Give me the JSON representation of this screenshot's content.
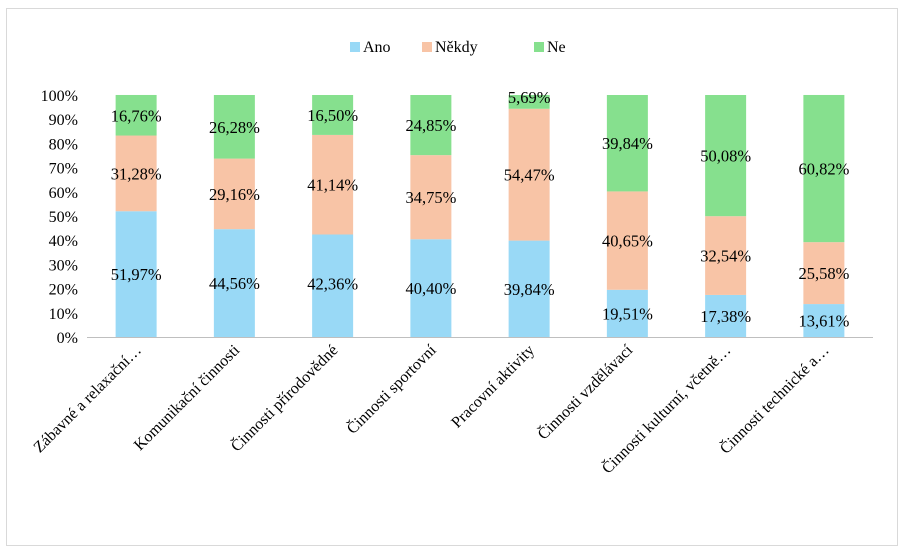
{
  "chart_data": {
    "type": "bar",
    "stacked": "percent",
    "title": "",
    "xlabel": "",
    "ylabel": "",
    "ylim": [
      0,
      100
    ],
    "y_ticks": [
      "0%",
      "10%",
      "20%",
      "30%",
      "40%",
      "50%",
      "60%",
      "70%",
      "80%",
      "90%",
      "100%"
    ],
    "grid": false,
    "legend_position": "top",
    "categories": [
      "Zábavné a relaxační…",
      "Komunikační činnosti",
      "Činnosti přírodovědné",
      "Činnosti sportovní",
      "Pracovní aktivity",
      "Činnosti vzdělávací",
      "Činnosti kulturní, včetně…",
      "Činnosti technické a…"
    ],
    "series": [
      {
        "name": "Ano",
        "color": "#99d9f6",
        "values": [
          51.97,
          44.56,
          42.36,
          40.4,
          39.84,
          19.51,
          17.38,
          13.61
        ],
        "labels": [
          "51,97%",
          "44,56%",
          "42,36%",
          "40,40%",
          "39,84%",
          "19,51%",
          "17,38%",
          "13,61%"
        ]
      },
      {
        "name": "Někdy",
        "color": "#f8c4a6",
        "values": [
          31.28,
          29.16,
          41.14,
          34.75,
          54.47,
          40.65,
          32.54,
          25.58
        ],
        "labels": [
          "31,28%",
          "29,16%",
          "41,14%",
          "34,75%",
          "54,47%",
          "40,65%",
          "32,54%",
          "25,58%"
        ]
      },
      {
        "name": "Ne",
        "color": "#86e08e",
        "values": [
          16.76,
          26.28,
          16.5,
          24.85,
          5.69,
          39.84,
          50.08,
          60.82
        ],
        "labels": [
          "16,76%",
          "26,28%",
          "16,50%",
          "24,85%",
          "5,69%",
          "39,84%",
          "50,08%",
          "60,82%"
        ]
      }
    ]
  }
}
